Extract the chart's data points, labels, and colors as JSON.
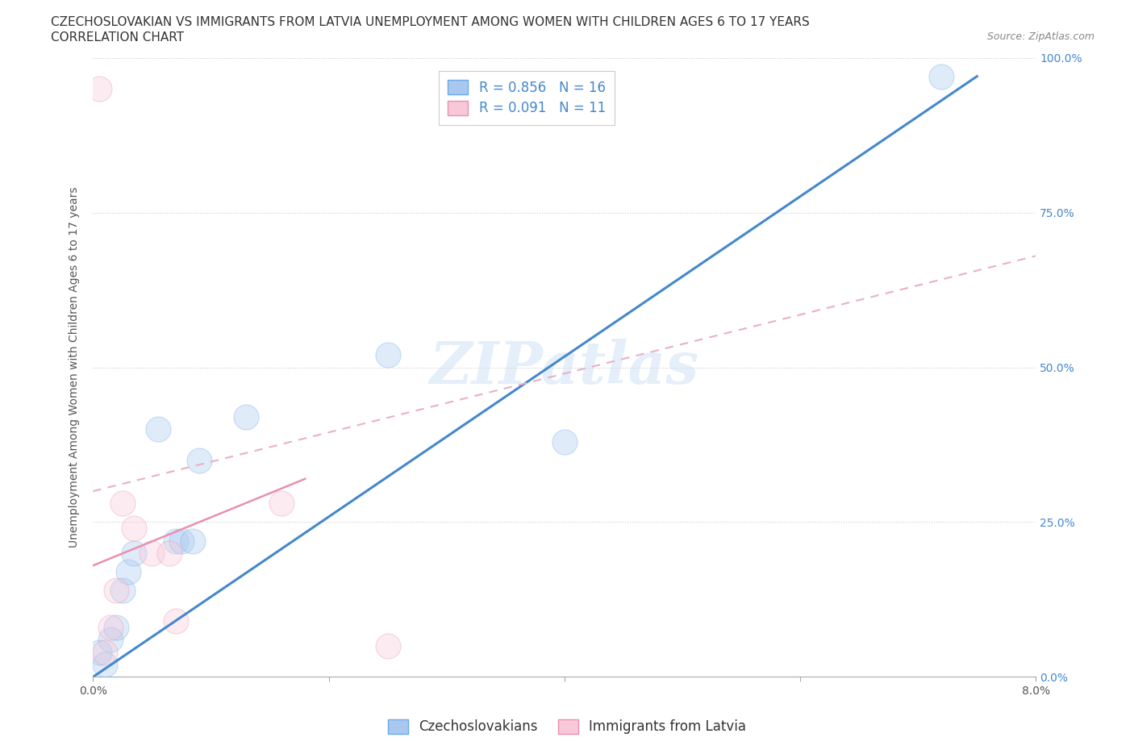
{
  "title_line1": "CZECHOSLOVAKIAN VS IMMIGRANTS FROM LATVIA UNEMPLOYMENT AMONG WOMEN WITH CHILDREN AGES 6 TO 17 YEARS",
  "title_line2": "CORRELATION CHART",
  "source_text": "Source: ZipAtlas.com",
  "ylabel": "Unemployment Among Women with Children Ages 6 to 17 years",
  "xlim": [
    0.0,
    8.0
  ],
  "ylim": [
    0.0,
    100.0
  ],
  "ytick_values": [
    0,
    25,
    50,
    75,
    100
  ],
  "ytick_right_labels": [
    "0.0%",
    "25.0%",
    "50.0%",
    "75.0%",
    "100.0%"
  ],
  "blue_scatter_x": [
    0.05,
    0.1,
    0.15,
    0.2,
    0.25,
    0.3,
    0.35,
    0.55,
    0.7,
    0.75,
    0.85,
    0.9,
    1.3,
    2.5,
    4.0,
    7.2
  ],
  "blue_scatter_y": [
    4,
    2,
    6,
    8,
    14,
    17,
    20,
    40,
    22,
    22,
    22,
    35,
    42,
    52,
    38,
    97
  ],
  "pink_scatter_x": [
    0.05,
    0.1,
    0.15,
    0.2,
    0.25,
    0.35,
    0.5,
    0.65,
    0.7,
    1.6,
    2.5
  ],
  "pink_scatter_y": [
    95,
    4,
    8,
    14,
    28,
    24,
    20,
    20,
    9,
    28,
    5
  ],
  "blue_line_x": [
    0.0,
    7.5
  ],
  "blue_line_y": [
    0.0,
    97.0
  ],
  "pink_solid_line_x": [
    0.0,
    1.8
  ],
  "pink_solid_line_y": [
    18.0,
    32.0
  ],
  "pink_dashed_line_x": [
    0.0,
    8.0
  ],
  "pink_dashed_line_y": [
    30.0,
    68.0
  ],
  "blue_color": "#a8c8f0",
  "blue_edge": "#6aaae8",
  "pink_color": "#f8c8d8",
  "pink_edge": "#e890b0",
  "blue_line_color": "#4488cc",
  "pink_solid_color": "#e890b0",
  "pink_dashed_color": "#e8b0c8",
  "legend_R_blue": "R = 0.856",
  "legend_N_blue": "N = 16",
  "legend_R_pink": "R = 0.091",
  "legend_N_pink": "N = 11",
  "legend_label_blue": "Czechoslovakians",
  "legend_label_pink": "Immigrants from Latvia",
  "watermark": "ZIPatlas",
  "title_fontsize": 11,
  "subtitle_fontsize": 11,
  "source_fontsize": 9,
  "axis_label_fontsize": 10,
  "tick_fontsize": 10,
  "legend_fontsize": 12,
  "scatter_size": 500,
  "scatter_alpha": 0.35
}
